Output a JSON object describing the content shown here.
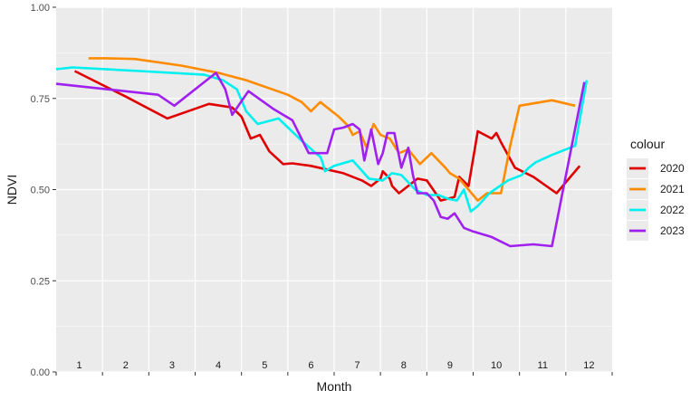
{
  "chart_data": {
    "type": "line",
    "xlabel": "Month",
    "ylabel": "NDVI",
    "xlim": [
      0.5,
      12.5
    ],
    "ylim": [
      0,
      1
    ],
    "y_ticks": [
      0,
      0.25,
      0.5,
      0.75,
      1
    ],
    "y_tick_labels": [
      "0.00",
      "0.25",
      "0.50",
      "0.75",
      "1.00"
    ],
    "month_labels": [
      "1",
      "2",
      "3",
      "4",
      "5",
      "6",
      "7",
      "8",
      "9",
      "10",
      "11",
      "12"
    ],
    "grid": true,
    "legend": {
      "title": "colour",
      "position": "right"
    },
    "series": [
      {
        "name": "2020",
        "color": "#e00000",
        "x": [
          0.9,
          2.0,
          2.9,
          3.8,
          4.3,
          4.5,
          4.7,
          4.9,
          5.1,
          5.4,
          5.6,
          6.0,
          6.7,
          7.1,
          7.3,
          7.5,
          7.55,
          7.7,
          7.75,
          7.9,
          8.3,
          8.5,
          8.8,
          9.1,
          9.2,
          9.4,
          9.6,
          9.9,
          10.0,
          10.1,
          10.4,
          10.8,
          11.3,
          11.8
        ],
        "y": [
          0.825,
          0.755,
          0.695,
          0.735,
          0.725,
          0.7,
          0.64,
          0.65,
          0.605,
          0.57,
          0.572,
          0.565,
          0.545,
          0.525,
          0.51,
          0.53,
          0.55,
          0.53,
          0.51,
          0.49,
          0.53,
          0.525,
          0.47,
          0.48,
          0.535,
          0.51,
          0.66,
          0.64,
          0.655,
          0.63,
          0.56,
          0.535,
          0.49,
          0.565
        ]
      },
      {
        "name": "2021",
        "color": "#ff8c00",
        "x": [
          1.2,
          1.6,
          2.2,
          3.2,
          4.0,
          4.6,
          5.5,
          5.8,
          6.0,
          6.2,
          6.6,
          6.8,
          6.9,
          7.05,
          7.2,
          7.35,
          7.5,
          7.7,
          7.9,
          8.1,
          8.35,
          8.6,
          8.9,
          9.0,
          9.2,
          9.4,
          9.6,
          9.8,
          10.1,
          10.3,
          10.5,
          11.2,
          11.7
        ],
        "y": [
          0.86,
          0.86,
          0.858,
          0.84,
          0.82,
          0.8,
          0.76,
          0.74,
          0.715,
          0.74,
          0.7,
          0.675,
          0.65,
          0.66,
          0.615,
          0.68,
          0.65,
          0.64,
          0.6,
          0.61,
          0.57,
          0.6,
          0.56,
          0.545,
          0.53,
          0.5,
          0.47,
          0.49,
          0.49,
          0.62,
          0.73,
          0.745,
          0.73
        ]
      },
      {
        "name": "2022",
        "color": "#00f0f0",
        "x": [
          0.5,
          0.85,
          2.3,
          3.7,
          4.1,
          4.4,
          4.5,
          4.6,
          4.85,
          5.3,
          5.75,
          6.1,
          6.2,
          6.25,
          6.3,
          6.5,
          6.9,
          7.25,
          7.55,
          7.75,
          7.95,
          8.25,
          8.5,
          8.75,
          8.95,
          9.15,
          9.3,
          9.45,
          9.6,
          9.85,
          10.25,
          10.55,
          10.7,
          10.85,
          11.2,
          11.7,
          11.95
        ],
        "y": [
          0.83,
          0.835,
          0.825,
          0.815,
          0.8,
          0.775,
          0.745,
          0.715,
          0.68,
          0.695,
          0.64,
          0.6,
          0.59,
          0.575,
          0.55,
          0.565,
          0.58,
          0.53,
          0.525,
          0.545,
          0.54,
          0.5,
          0.485,
          0.485,
          0.475,
          0.47,
          0.5,
          0.44,
          0.455,
          0.49,
          0.525,
          0.54,
          0.56,
          0.575,
          0.595,
          0.62,
          0.8
        ]
      },
      {
        "name": "2023",
        "color": "#a020f0",
        "x": [
          0.5,
          2.7,
          3.05,
          3.95,
          4.15,
          4.3,
          4.65,
          5.2,
          5.6,
          5.95,
          6.1,
          6.35,
          6.5,
          6.7,
          6.9,
          7.05,
          7.15,
          7.3,
          7.45,
          7.55,
          7.65,
          7.8,
          7.95,
          8.1,
          8.2,
          8.3,
          8.5,
          8.65,
          8.8,
          8.95,
          9.1,
          9.3,
          9.5,
          9.9,
          10.3,
          10.8,
          11.2,
          11.9
        ],
        "y": [
          0.79,
          0.76,
          0.73,
          0.82,
          0.775,
          0.705,
          0.77,
          0.72,
          0.69,
          0.6,
          0.6,
          0.6,
          0.665,
          0.67,
          0.68,
          0.665,
          0.58,
          0.665,
          0.57,
          0.6,
          0.655,
          0.655,
          0.56,
          0.615,
          0.54,
          0.49,
          0.49,
          0.47,
          0.425,
          0.42,
          0.435,
          0.395,
          0.385,
          0.37,
          0.345,
          0.35,
          0.345,
          0.795
        ]
      }
    ]
  }
}
